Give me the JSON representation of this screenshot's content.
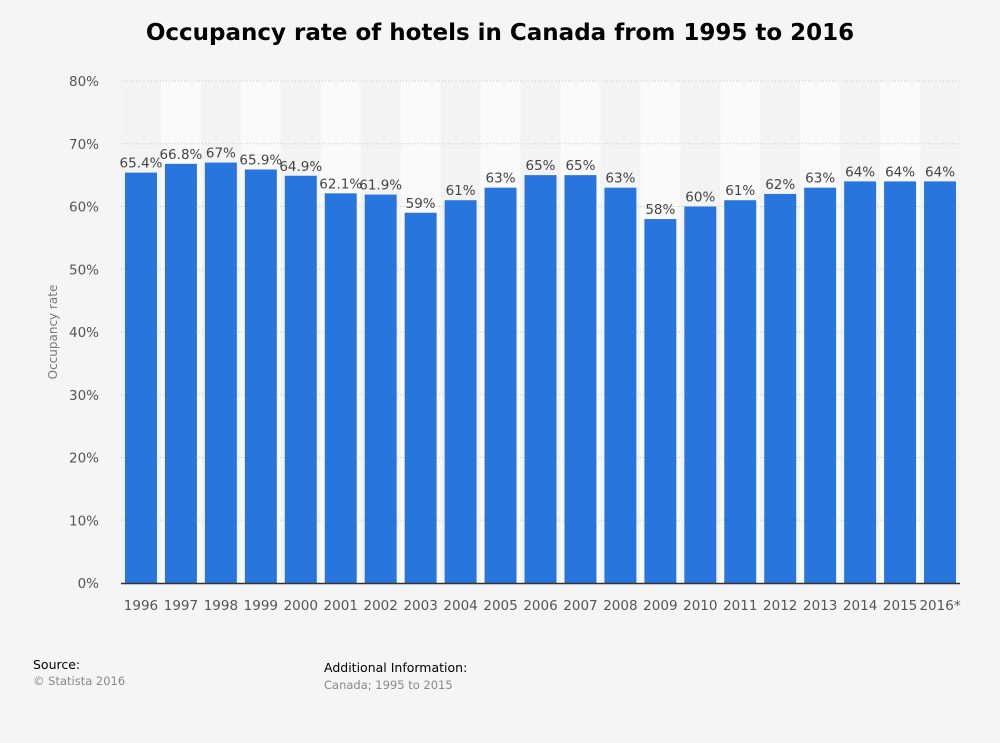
{
  "chart_data": {
    "type": "bar",
    "title": "Occupancy rate of hotels in Canada from 1995 to 2016",
    "ylabel": "Occupancy rate",
    "xlabel": "",
    "categories": [
      "1996",
      "1997",
      "1998",
      "1999",
      "2000",
      "2001",
      "2002",
      "2003",
      "2004",
      "2005",
      "2006",
      "2007",
      "2008",
      "2009",
      "2010",
      "2011",
      "2012",
      "2013",
      "2014",
      "2015",
      "2016*"
    ],
    "values": [
      65.4,
      66.8,
      67,
      65.9,
      64.9,
      62.1,
      61.9,
      59,
      61,
      63,
      65,
      65,
      63,
      58,
      60,
      61,
      62,
      63,
      64,
      64,
      64
    ],
    "value_labels": [
      "65.4%",
      "66.8%",
      "67%",
      "65.9%",
      "64.9%",
      "62.1%",
      "61.9%",
      "59%",
      "61%",
      "63%",
      "65%",
      "65%",
      "63%",
      "58%",
      "60%",
      "61%",
      "62%",
      "63%",
      "64%",
      "64%",
      "64%"
    ],
    "ylim": [
      0,
      80
    ],
    "yticks": [
      0,
      10,
      20,
      30,
      40,
      50,
      60,
      70,
      80
    ],
    "ytick_labels": [
      "0%",
      "10%",
      "20%",
      "30%",
      "40%",
      "50%",
      "60%",
      "70%",
      "80%"
    ],
    "grid": true,
    "bar_color": "#2876dd"
  },
  "footer": {
    "source_title": "Source:",
    "source": "© Statista 2016",
    "info_title": "Additional Information:",
    "info": "Canada; 1995 to 2015"
  }
}
